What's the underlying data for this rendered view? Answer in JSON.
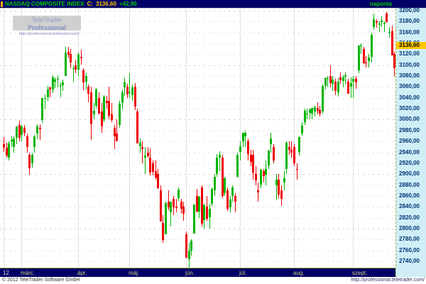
{
  "header": {
    "symbol": "NASDAQ COMPOSITE INDEX",
    "close_label": "C:",
    "close": "3136,60",
    "change": "+42,90",
    "timeframe": "naponta"
  },
  "watermark": {
    "brand_regular": "TeleTrader",
    "brand_bold": "Professional",
    "url": "http://professional.teletrader.com/"
  },
  "footer": {
    "copyright": "© 2012 TeleTrader Software GmbH",
    "url": "http://professional.teletrader.com/"
  },
  "colors": {
    "up": "#00b400",
    "down": "#ee0000",
    "topbar_bg": "#000066",
    "axis_bg": "#cfeef6",
    "axis_text": "#003377",
    "price_tag_bg": "#ffc800",
    "symbol_text": "#00cc00",
    "close_text": "#ffcc00"
  },
  "chart_data": {
    "type": "candlestick",
    "title": "NASDAQ COMPOSITE INDEX",
    "timeframe_label": "naponta",
    "period_shown": "late Feb 2012 - 26 Sep 2012, daily candles",
    "y_axis": {
      "min": 2740,
      "max": 3200,
      "step": 20,
      "decimal_format": "comma",
      "last_price": 3136.6,
      "last_price_label": "3136,60"
    },
    "x_axis": {
      "year_label": "12",
      "year_index": 0,
      "month_labels": [
        {
          "label": "márc.",
          "index": 7
        },
        {
          "label": "ápr.",
          "index": 29
        },
        {
          "label": "máj.",
          "index": 49
        },
        {
          "label": "jún.",
          "index": 71
        },
        {
          "label": "júl.",
          "index": 92
        },
        {
          "label": "aug.",
          "index": 113
        },
        {
          "label": "szept.",
          "index": 136
        }
      ]
    },
    "candles": [
      [
        2955,
        2968,
        2940,
        2948
      ],
      [
        2948,
        2958,
        2930,
        2934
      ],
      [
        2930,
        2960,
        2925,
        2956
      ],
      [
        2960,
        2970,
        2950,
        2963
      ],
      [
        2950,
        2970,
        2940,
        2966
      ],
      [
        2966,
        2988,
        2956,
        2987
      ],
      [
        2990,
        2998,
        2960,
        2967
      ],
      [
        2972,
        2990,
        2960,
        2988
      ],
      [
        2985,
        2990,
        2969,
        2976
      ],
      [
        2970,
        2975,
        2940,
        2950
      ],
      [
        2935,
        2940,
        2900,
        2910
      ],
      [
        2920,
        2940,
        2912,
        2936
      ],
      [
        2950,
        2972,
        2940,
        2970
      ],
      [
        2975,
        2992,
        2965,
        2988
      ],
      [
        2985,
        2992,
        2963,
        2983
      ],
      [
        3000,
        3040,
        2995,
        3040
      ],
      [
        3040,
        3046,
        3018,
        3040
      ],
      [
        3042,
        3062,
        3035,
        3056
      ],
      [
        3059,
        3060,
        3040,
        3055
      ],
      [
        3056,
        3082,
        3050,
        3078
      ],
      [
        3070,
        3078,
        3058,
        3074
      ],
      [
        3074,
        3081,
        3059,
        3075
      ],
      [
        3062,
        3068,
        3040,
        3063
      ],
      [
        3063,
        3073,
        3052,
        3068
      ],
      [
        3080,
        3134,
        3080,
        3123
      ],
      [
        3125,
        3134,
        3113,
        3120
      ],
      [
        3120,
        3130,
        3095,
        3105
      ],
      [
        3095,
        3100,
        3070,
        3095
      ],
      [
        3100,
        3110,
        3085,
        3092
      ],
      [
        3092,
        3123,
        3080,
        3119
      ],
      [
        3115,
        3128,
        3100,
        3113
      ],
      [
        3090,
        3095,
        3055,
        3068
      ],
      [
        3070,
        3085,
        3055,
        3080
      ],
      [
        3060,
        3065,
        3032,
        3047
      ],
      [
        3050,
        3060,
        2962,
        2991
      ],
      [
        3010,
        3030,
        3000,
        3016
      ],
      [
        3025,
        3058,
        3020,
        3055
      ],
      [
        3040,
        3050,
        3010,
        3011
      ],
      [
        3015,
        3030,
        2975,
        2988
      ],
      [
        3000,
        3045,
        2995,
        3042
      ],
      [
        3035,
        3043,
        3020,
        3031
      ],
      [
        3035,
        3060,
        3000,
        3007
      ],
      [
        3010,
        3030,
        2995,
        3000
      ],
      [
        2985,
        2990,
        2946,
        2970
      ],
      [
        2975,
        3000,
        2960,
        2961
      ],
      [
        2990,
        3035,
        2985,
        3029
      ],
      [
        3030,
        3056,
        3020,
        3050
      ],
      [
        3060,
        3076,
        3043,
        3069
      ],
      [
        3060,
        3066,
        3040,
        3046
      ],
      [
        3050,
        3085,
        3040,
        3050
      ],
      [
        3045,
        3065,
        3035,
        3059
      ],
      [
        3060,
        3067,
        3018,
        3024
      ],
      [
        3015,
        3020,
        2956,
        2956
      ],
      [
        2950,
        2966,
        2940,
        2957
      ],
      [
        2950,
        2960,
        2920,
        2946
      ],
      [
        2930,
        2950,
        2900,
        2934
      ],
      [
        2940,
        2950,
        2930,
        2933
      ],
      [
        2930,
        2947,
        2898,
        2902
      ],
      [
        2920,
        2925,
        2898,
        2905
      ],
      [
        2905,
        2925,
        2890,
        2893
      ],
      [
        2900,
        2910,
        2874,
        2874
      ],
      [
        2870,
        2880,
        2813,
        2813
      ],
      [
        2810,
        2825,
        2774,
        2779
      ],
      [
        2790,
        2850,
        2790,
        2847
      ],
      [
        2850,
        2870,
        2833,
        2839
      ],
      [
        2830,
        2850,
        2805,
        2850
      ],
      [
        2855,
        2860,
        2825,
        2840
      ],
      [
        2840,
        2855,
        2830,
        2837
      ],
      [
        2855,
        2875,
        2850,
        2871
      ],
      [
        2850,
        2855,
        2827,
        2837
      ],
      [
        2840,
        2850,
        2815,
        2827
      ],
      [
        2790,
        2795,
        2747,
        2747
      ],
      [
        2745,
        2774,
        2726,
        2760
      ],
      [
        2760,
        2780,
        2750,
        2778
      ],
      [
        2790,
        2844,
        2790,
        2844
      ],
      [
        2860,
        2873,
        2830,
        2831
      ],
      [
        2830,
        2860,
        2820,
        2858
      ],
      [
        2875,
        2880,
        2805,
        2809
      ],
      [
        2815,
        2845,
        2800,
        2843
      ],
      [
        2840,
        2860,
        2815,
        2818
      ],
      [
        2820,
        2845,
        2800,
        2836
      ],
      [
        2845,
        2875,
        2840,
        2873
      ],
      [
        2870,
        2900,
        2860,
        2895
      ],
      [
        2900,
        2937,
        2895,
        2930
      ],
      [
        2930,
        2942,
        2905,
        2935
      ],
      [
        2930,
        2935,
        2855,
        2859
      ],
      [
        2865,
        2895,
        2860,
        2892
      ],
      [
        2870,
        2875,
        2832,
        2836
      ],
      [
        2840,
        2860,
        2830,
        2854
      ],
      [
        2860,
        2880,
        2850,
        2875
      ],
      [
        2860,
        2865,
        2830,
        2849
      ],
      [
        2895,
        2940,
        2895,
        2935
      ],
      [
        2940,
        2960,
        2925,
        2951
      ],
      [
        2960,
        2976,
        2950,
        2976
      ],
      [
        2970,
        2980,
        2950,
        2976
      ],
      [
        2960,
        2965,
        2925,
        2937
      ],
      [
        2935,
        2945,
        2915,
        2922
      ],
      [
        2935,
        2945,
        2890,
        2902
      ],
      [
        2900,
        2915,
        2880,
        2888
      ],
      [
        2870,
        2885,
        2850,
        2866
      ],
      [
        2880,
        2910,
        2875,
        2908
      ],
      [
        2905,
        2910,
        2885,
        2896
      ],
      [
        2900,
        2925,
        2880,
        2910
      ],
      [
        2915,
        2945,
        2910,
        2943
      ],
      [
        2955,
        2976,
        2940,
        2965
      ],
      [
        2950,
        2955,
        2920,
        2925
      ],
      [
        2880,
        2900,
        2852,
        2890
      ],
      [
        2890,
        2900,
        2854,
        2862
      ],
      [
        2870,
        2880,
        2842,
        2854
      ],
      [
        2885,
        2905,
        2870,
        2893
      ],
      [
        2910,
        2960,
        2900,
        2958
      ],
      [
        2950,
        2960,
        2935,
        2945
      ],
      [
        2945,
        2960,
        2930,
        2940
      ],
      [
        2950,
        2955,
        2915,
        2920
      ],
      [
        2910,
        2920,
        2890,
        2909
      ],
      [
        2940,
        2970,
        2935,
        2968
      ],
      [
        2975,
        2995,
        2970,
        2989
      ],
      [
        2995,
        3020,
        2990,
        3016
      ],
      [
        3010,
        3020,
        3000,
        3011
      ],
      [
        3012,
        3020,
        3000,
        3019
      ],
      [
        3010,
        3021,
        3000,
        3021
      ],
      [
        3015,
        3025,
        3005,
        3023
      ],
      [
        3022,
        3032,
        3010,
        3017
      ],
      [
        3017,
        3025,
        3005,
        3011
      ],
      [
        3015,
        3065,
        3012,
        3062
      ],
      [
        3062,
        3077,
        3055,
        3076
      ],
      [
        3076,
        3080,
        3060,
        3076
      ],
      [
        3080,
        3100,
        3060,
        3067
      ],
      [
        3065,
        3080,
        3053,
        3073
      ],
      [
        3070,
        3075,
        3045,
        3053
      ],
      [
        3050,
        3076,
        3042,
        3070
      ],
      [
        3078,
        3086,
        3065,
        3073
      ],
      [
        3070,
        3082,
        3060,
        3077
      ],
      [
        3078,
        3087,
        3065,
        3081
      ],
      [
        3070,
        3075,
        3048,
        3048
      ],
      [
        3060,
        3078,
        3040,
        3067
      ],
      [
        3070,
        3080,
        3040,
        3075
      ],
      [
        3075,
        3080,
        3056,
        3069
      ],
      [
        3090,
        3136,
        3085,
        3136
      ],
      [
        3136,
        3140,
        3120,
        3136
      ],
      [
        3130,
        3133,
        3102,
        3104
      ],
      [
        3105,
        3117,
        3096,
        3104
      ],
      [
        3108,
        3120,
        3095,
        3114
      ],
      [
        3115,
        3160,
        3105,
        3156
      ],
      [
        3170,
        3195,
        3165,
        3184
      ],
      [
        3180,
        3185,
        3170,
        3178
      ],
      [
        3175,
        3180,
        3160,
        3177
      ],
      [
        3180,
        3189,
        3170,
        3182
      ],
      [
        3175,
        3180,
        3160,
        3178
      ],
      [
        3195,
        3197,
        3178,
        3180
      ],
      [
        3160,
        3170,
        3150,
        3161
      ],
      [
        3162,
        3172,
        3117,
        3118
      ],
      [
        3120,
        3125,
        3080,
        3094
      ]
    ]
  }
}
